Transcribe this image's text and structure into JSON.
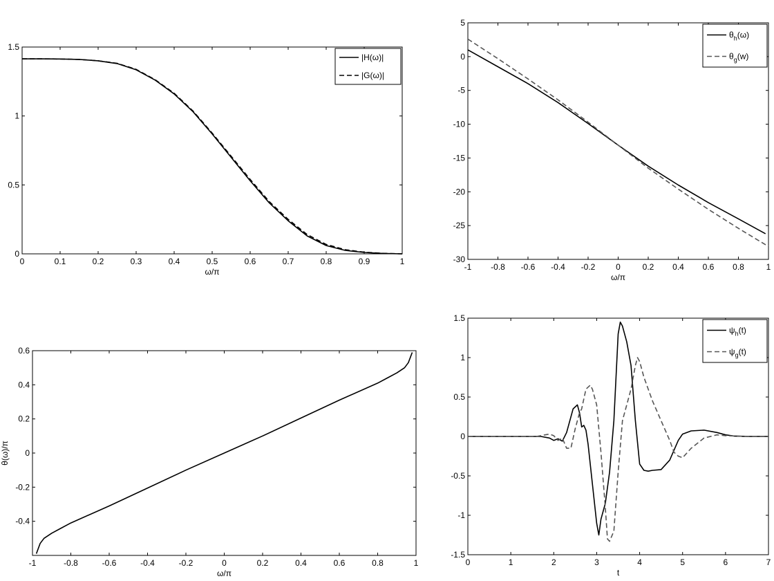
{
  "chart_data": [
    {
      "type": "line",
      "id": "p1",
      "xlabel": "ω/π",
      "ylabel": "",
      "xlim": [
        0,
        1
      ],
      "ylim": [
        0,
        1.5
      ],
      "xticks": [
        "0",
        "0.1",
        "0.2",
        "0.3",
        "0.4",
        "0.5",
        "0.6",
        "0.7",
        "0.8",
        "0.9",
        "1"
      ],
      "yticks": [
        "0",
        "0.5",
        "1",
        "1.5"
      ],
      "legend": "top-right",
      "series": [
        {
          "name": "|H(ω)|",
          "style": "solid",
          "color": "#000000",
          "x": [
            0,
            0.05,
            0.1,
            0.15,
            0.2,
            0.25,
            0.3,
            0.35,
            0.4,
            0.45,
            0.5,
            0.55,
            0.6,
            0.65,
            0.7,
            0.75,
            0.8,
            0.85,
            0.9,
            0.95,
            1.0
          ],
          "y": [
            1.414,
            1.414,
            1.413,
            1.41,
            1.4,
            1.38,
            1.335,
            1.26,
            1.16,
            1.03,
            0.87,
            0.7,
            0.53,
            0.37,
            0.24,
            0.13,
            0.06,
            0.025,
            0.01,
            0.003,
            0
          ]
        },
        {
          "name": "|G(ω)|",
          "style": "dashed",
          "color": "#000000",
          "x": [
            0,
            0.05,
            0.1,
            0.15,
            0.2,
            0.25,
            0.3,
            0.35,
            0.4,
            0.45,
            0.5,
            0.55,
            0.6,
            0.65,
            0.7,
            0.75,
            0.8,
            0.85,
            0.9,
            0.95,
            1.0
          ],
          "y": [
            1.414,
            1.414,
            1.413,
            1.41,
            1.4,
            1.382,
            1.338,
            1.263,
            1.165,
            1.035,
            0.876,
            0.708,
            0.54,
            0.38,
            0.25,
            0.14,
            0.068,
            0.03,
            0.012,
            0.004,
            0
          ]
        }
      ]
    },
    {
      "type": "line",
      "id": "p2",
      "xlabel": "ω/π",
      "ylabel": "",
      "xlim": [
        -1,
        1
      ],
      "ylim": [
        -30,
        5
      ],
      "xticks": [
        "-1",
        "-0.8",
        "-0.6",
        "-0.4",
        "-0.2",
        "0",
        "0.2",
        "0.4",
        "0.6",
        "0.8",
        "1"
      ],
      "yticks": [
        "-30",
        "-25",
        "-20",
        "-15",
        "-10",
        "-5",
        "0",
        "5"
      ],
      "legend": "top-right",
      "series": [
        {
          "name": "θh(ω)",
          "legend_main": "θ",
          "legend_sub": "h",
          "legend_tail": "(ω)",
          "style": "solid",
          "color": "#000000",
          "x": [
            -1,
            -0.8,
            -0.6,
            -0.4,
            -0.2,
            0,
            0.2,
            0.4,
            0.6,
            0.8,
            0.98
          ],
          "y": [
            1.0,
            -1.5,
            -4.0,
            -6.8,
            -9.9,
            -13.1,
            -16.2,
            -19.0,
            -21.6,
            -24.0,
            -26.2
          ]
        },
        {
          "name": "θg(w)",
          "legend_main": "θ",
          "legend_sub": "g",
          "legend_tail": "(w)",
          "style": "dashed",
          "color": "#555555",
          "x": [
            -1,
            -0.8,
            -0.6,
            -0.4,
            -0.2,
            0,
            0.2,
            0.4,
            0.6,
            0.8,
            1.0
          ],
          "y": [
            2.6,
            -0.3,
            -3.3,
            -6.4,
            -9.7,
            -13.1,
            -16.5,
            -19.6,
            -22.6,
            -25.4,
            -28.1
          ]
        }
      ]
    },
    {
      "type": "line",
      "id": "p3",
      "xlabel": "ω/π",
      "ylabel": "θ(ω)/π",
      "xlim": [
        -1,
        1
      ],
      "ylim": [
        -0.6,
        0.6
      ],
      "xticks": [
        "-1",
        "-0.8",
        "-0.6",
        "-0.4",
        "-0.2",
        "0",
        "0.2",
        "0.4",
        "0.6",
        "0.8",
        "1"
      ],
      "yticks": [
        "-0.4",
        "-0.2",
        "0",
        "0.2",
        "0.4",
        "0.6"
      ],
      "series": [
        {
          "name": "θ(ω)/π",
          "style": "solid",
          "color": "#000000",
          "x": [
            -0.98,
            -0.96,
            -0.94,
            -0.9,
            -0.85,
            -0.8,
            -0.6,
            -0.4,
            -0.2,
            0,
            0.2,
            0.4,
            0.6,
            0.8,
            0.85,
            0.9,
            0.94,
            0.96,
            0.98
          ],
          "y": [
            -0.59,
            -0.53,
            -0.5,
            -0.47,
            -0.44,
            -0.41,
            -0.31,
            -0.205,
            -0.1,
            0,
            0.1,
            0.205,
            0.31,
            0.41,
            0.44,
            0.47,
            0.5,
            0.53,
            0.59
          ]
        }
      ]
    },
    {
      "type": "line",
      "id": "p4",
      "xlabel": "t",
      "ylabel": "",
      "xlim": [
        0,
        7
      ],
      "ylim": [
        -1.5,
        1.5
      ],
      "xticks": [
        "0",
        "1",
        "2",
        "3",
        "4",
        "5",
        "6",
        "7"
      ],
      "yticks": [
        "-1.5",
        "-1",
        "-0.5",
        "0",
        "0.5",
        "1",
        "1.5"
      ],
      "legend": "top-right",
      "series": [
        {
          "name": "ψh(t)",
          "legend_main": "ψ",
          "legend_sub": "h",
          "legend_tail": "(t)",
          "style": "solid",
          "color": "#000000",
          "x": [
            0,
            1.7,
            1.9,
            2.0,
            2.1,
            2.2,
            2.3,
            2.45,
            2.55,
            2.6,
            2.65,
            2.7,
            2.75,
            2.8,
            2.85,
            2.9,
            3.0,
            3.05,
            3.1,
            3.2,
            3.3,
            3.4,
            3.5,
            3.55,
            3.6,
            3.7,
            3.8,
            3.9,
            4.0,
            4.1,
            4.2,
            4.3,
            4.5,
            4.7,
            4.9,
            5.0,
            5.2,
            5.5,
            5.8,
            6.0,
            6.2,
            6.5,
            7.0
          ],
          "y": [
            0,
            0,
            -0.02,
            -0.05,
            -0.03,
            -0.06,
            0.05,
            0.35,
            0.4,
            0.3,
            0.12,
            0.14,
            0.08,
            -0.1,
            -0.35,
            -0.6,
            -1.1,
            -1.25,
            -1.05,
            -0.85,
            -0.45,
            0.2,
            1.3,
            1.45,
            1.4,
            1.2,
            0.9,
            0.2,
            -0.35,
            -0.43,
            -0.44,
            -0.43,
            -0.42,
            -0.3,
            -0.05,
            0.03,
            0.07,
            0.08,
            0.05,
            0.02,
            0.005,
            0,
            0
          ]
        },
        {
          "name": "ψg(t)",
          "legend_main": "ψ",
          "legend_sub": "g",
          "legend_tail": "(t)",
          "style": "dashed",
          "color": "#555555",
          "x": [
            0,
            1.6,
            1.8,
            1.9,
            2.0,
            2.1,
            2.2,
            2.3,
            2.4,
            2.5,
            2.6,
            2.65,
            2.75,
            2.85,
            2.9,
            3.0,
            3.1,
            3.2,
            3.25,
            3.3,
            3.4,
            3.5,
            3.6,
            3.7,
            3.8,
            3.9,
            3.95,
            4.0,
            4.1,
            4.3,
            4.5,
            4.7,
            4.8,
            4.9,
            5.0,
            5.2,
            5.5,
            5.8,
            6.0,
            6.5,
            7.0
          ],
          "y": [
            0,
            0,
            0.02,
            0.03,
            0.01,
            -0.05,
            -0.02,
            -0.15,
            -0.15,
            0.1,
            0.3,
            0.35,
            0.6,
            0.65,
            0.6,
            0.4,
            -0.2,
            -0.9,
            -1.3,
            -1.33,
            -1.2,
            -0.45,
            0.2,
            0.4,
            0.6,
            0.9,
            1.0,
            0.95,
            0.75,
            0.45,
            0.2,
            -0.05,
            -0.2,
            -0.25,
            -0.27,
            -0.15,
            -0.02,
            0.02,
            0.01,
            0,
            0
          ]
        }
      ]
    }
  ]
}
